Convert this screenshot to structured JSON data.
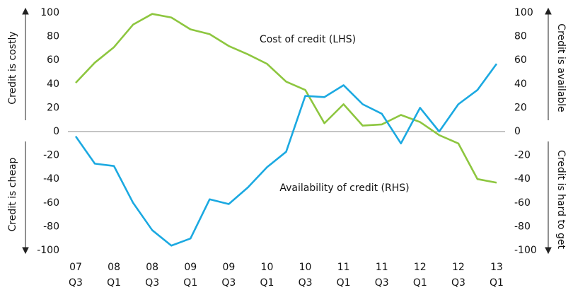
{
  "chart_data": {
    "type": "line",
    "categories": [
      "07 Q3",
      null,
      "08 Q1",
      null,
      "08 Q3",
      null,
      "09 Q1",
      null,
      "09 Q3",
      null,
      "10 Q1",
      null,
      "10 Q3",
      null,
      "11 Q1",
      null,
      "11 Q3",
      null,
      "12 Q1",
      null,
      "12 Q3",
      null,
      "13 Q1"
    ],
    "series": [
      {
        "name": "Cost of credit (LHS)",
        "color": "#8dc63f",
        "axis": "y",
        "values": [
          41,
          58,
          71,
          90,
          99,
          96,
          86,
          82,
          72,
          65,
          57,
          42,
          35,
          7,
          23,
          5,
          6,
          14,
          8,
          -3,
          -10,
          -40,
          -43
        ]
      },
      {
        "name": "Availability of credit (RHS)",
        "color": "#1ba9e1",
        "axis": "y2",
        "values": [
          -4,
          -27,
          -29,
          -60,
          -83,
          -96,
          -90,
          -57,
          -61,
          -47,
          -30,
          -17,
          30,
          29,
          39,
          23,
          15,
          -10,
          20,
          0,
          23,
          35,
          57
        ]
      }
    ],
    "ylim": [
      -100,
      100
    ],
    "yticks": [
      -100,
      -80,
      -60,
      -40,
      -20,
      0,
      20,
      40,
      60,
      80,
      100
    ],
    "y2lim": [
      -100,
      100
    ],
    "y2ticks": [
      -100,
      -80,
      -60,
      -40,
      -20,
      0,
      20,
      40,
      60,
      80,
      100
    ],
    "ylabel_top": "Credit is costly",
    "ylabel_bottom": "Credit is cheap",
    "y2label_top": "Credit is available",
    "y2label_bottom": "Credit is hard to get"
  }
}
